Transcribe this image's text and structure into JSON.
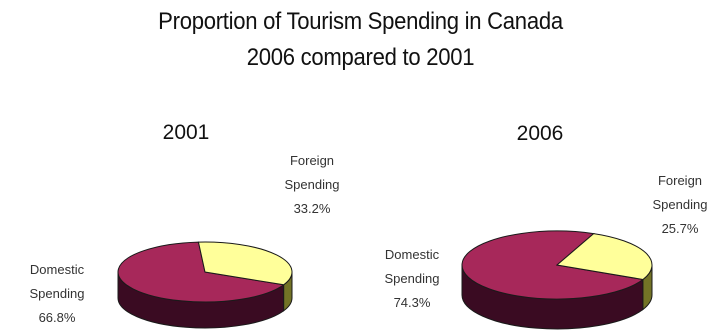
{
  "title": "Proportion of Tourism Spending in Canada",
  "subtitle": "2006 compared to 2001",
  "colors": {
    "domestic_top": "#a7285a",
    "domestic_side": "#3a0b22",
    "foreign_top": "#ffff9a",
    "foreign_side": "#737326",
    "outline": "#1a1a1a"
  },
  "chart_data": [
    {
      "type": "pie",
      "title": "2001",
      "slices": [
        {
          "name": "Domestic Spending",
          "value": 66.8,
          "label_lines": [
            "Domestic",
            "Spending",
            "66.8%"
          ]
        },
        {
          "name": "Foreign Spending",
          "value": 33.2,
          "label_lines": [
            "Foreign",
            "Spending",
            "33.2%"
          ]
        }
      ]
    },
    {
      "type": "pie",
      "title": "2006",
      "slices": [
        {
          "name": "Domestic Spending",
          "value": 74.3,
          "label_lines": [
            "Domestic",
            "Spending",
            "74.3%"
          ]
        },
        {
          "name": "Foreign Spending",
          "value": 25.7,
          "label_lines": [
            "Foreign",
            "Spending",
            "25.7%"
          ]
        }
      ]
    }
  ]
}
